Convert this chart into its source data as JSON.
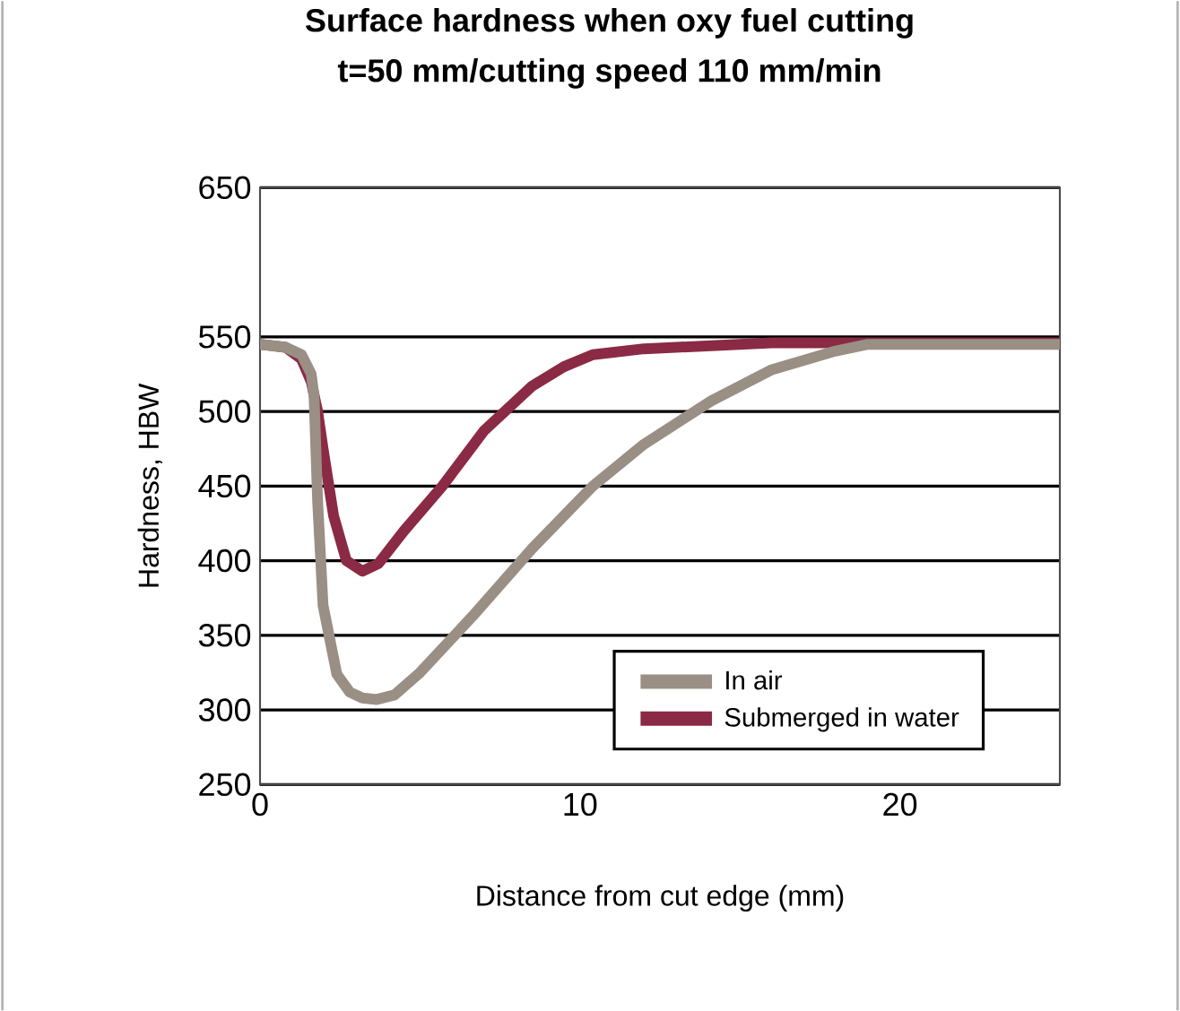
{
  "chart_data": {
    "type": "line",
    "title": "Surface hardness when oxy fuel cutting",
    "subtitle": "t=50 mm/cutting speed 110 mm/min",
    "xlabel": "Distance from cut edge (mm)",
    "ylabel": "Hardness, HBW",
    "xlim": [
      0,
      25
    ],
    "xticks": [
      0,
      10,
      20
    ],
    "ylim": [
      250,
      650
    ],
    "yticks": [
      250,
      300,
      350,
      400,
      450,
      500,
      550,
      650
    ],
    "grid": "y",
    "legend": "bottom right",
    "marker": "none",
    "line_style": "solid",
    "series": [
      {
        "name": "Submerged in water",
        "color": "#8b2a44",
        "x": [
          0,
          0.8,
          1.3,
          1.6,
          1.8,
          1.97,
          2.3,
          2.7,
          3.2,
          3.7,
          4.5,
          5.7,
          7,
          8.5,
          9.5,
          10.4,
          12,
          14.1,
          16,
          18,
          25
        ],
        "values": [
          545,
          543,
          535,
          520,
          500,
          475,
          430,
          400,
          393,
          398,
          420,
          450,
          487,
          517,
          530,
          538,
          542,
          544,
          546,
          546,
          546
        ]
      },
      {
        "name": "In air",
        "color": "#9a8f84",
        "x": [
          0,
          0.8,
          1.3,
          1.6,
          1.69,
          1.8,
          1.97,
          2.4,
          2.8,
          3.2,
          3.65,
          4.2,
          5,
          6.65,
          8.5,
          10.4,
          12,
          14.1,
          16,
          17.9,
          19,
          25
        ],
        "values": [
          545,
          543,
          538,
          525,
          510,
          440,
          370,
          324,
          312,
          308,
          307,
          310,
          325,
          363,
          408,
          450,
          478,
          507,
          528,
          540,
          545,
          545
        ]
      }
    ]
  }
}
